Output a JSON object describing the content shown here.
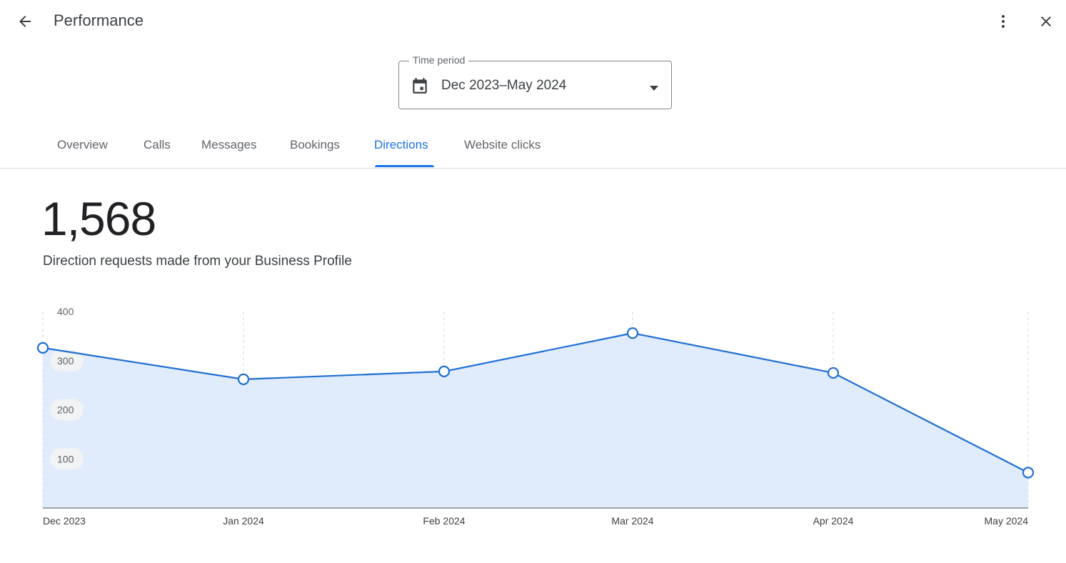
{
  "header": {
    "title": "Performance",
    "back_icon": "arrow-back-icon",
    "more_icon": "more-vert-icon",
    "close_icon": "close-icon"
  },
  "time_period": {
    "label": "Time period",
    "value": "Dec 2023–May 2024",
    "icon": "calendar-icon"
  },
  "tabs": [
    {
      "label": "Overview"
    },
    {
      "label": "Calls"
    },
    {
      "label": "Messages"
    },
    {
      "label": "Bookings"
    },
    {
      "label": "Directions",
      "active": true
    },
    {
      "label": "Website clicks"
    }
  ],
  "metric": {
    "value": "1,568",
    "description": "Direction requests made from your Business Profile"
  },
  "colors": {
    "accent": "#1a73e8",
    "line": "#1f6fd1",
    "area": "#e0ecfb"
  },
  "chart_data": {
    "type": "area",
    "categories": [
      "Dec 2023",
      "Jan 2024",
      "Feb 2024",
      "Mar 2024",
      "Apr 2024",
      "May 2024"
    ],
    "values": [
      326,
      262,
      278,
      356,
      275,
      72
    ],
    "y_ticks": [
      100,
      200,
      300,
      400
    ],
    "ylim": [
      0,
      400
    ],
    "grid": "vertical-dashed",
    "markers": "hollow-circle"
  }
}
